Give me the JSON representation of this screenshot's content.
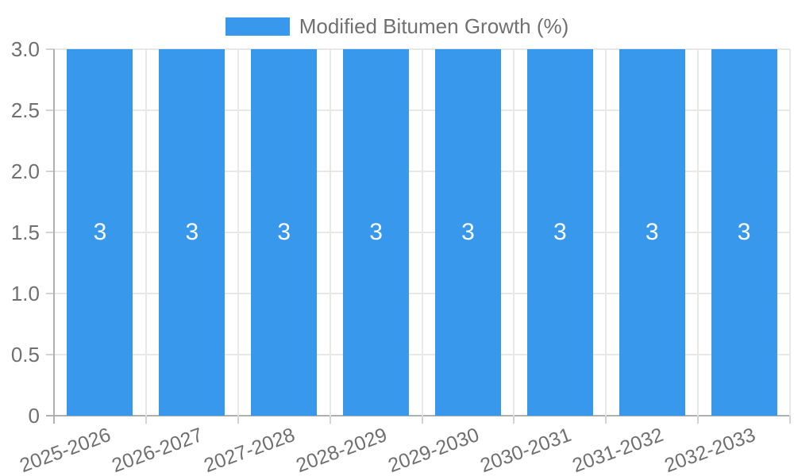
{
  "legend": {
    "label": "Modified Bitumen Growth (%)",
    "swatch_color": "#3898EC"
  },
  "chart_data": {
    "type": "bar",
    "title": "",
    "xlabel": "",
    "ylabel": "",
    "categories": [
      "2025-2026",
      "2026-2027",
      "2027-2028",
      "2028-2029",
      "2029-2030",
      "2030-2031",
      "2031-2032",
      "2032-2033"
    ],
    "series": [
      {
        "name": "Modified Bitumen Growth (%)",
        "color": "#3898EC",
        "values": [
          3,
          3,
          3,
          3,
          3,
          3,
          3,
          3
        ]
      }
    ],
    "bar_value_labels": [
      "3",
      "3",
      "3",
      "3",
      "3",
      "3",
      "3",
      "3"
    ],
    "ylim": [
      0,
      3
    ],
    "yticks": [
      {
        "value": 3,
        "label": "3.0"
      },
      {
        "value": 2.5,
        "label": "2.5"
      },
      {
        "value": 2,
        "label": "2.0"
      },
      {
        "value": 1.5,
        "label": "1.5"
      },
      {
        "value": 1,
        "label": "1.0"
      },
      {
        "value": 0.5,
        "label": "0.5"
      },
      {
        "value": 0,
        "label": "0"
      }
    ],
    "grid": true,
    "legend_position": "top",
    "colors": {
      "bar": "#3898EC",
      "bar_label": "#FFFFFF",
      "gridline": "#E8E8E8",
      "axis_line": "#B0B0B0",
      "tick_mark": "#D2D2D2",
      "tick_text": "#707070",
      "background": "#FFFFFF"
    }
  }
}
